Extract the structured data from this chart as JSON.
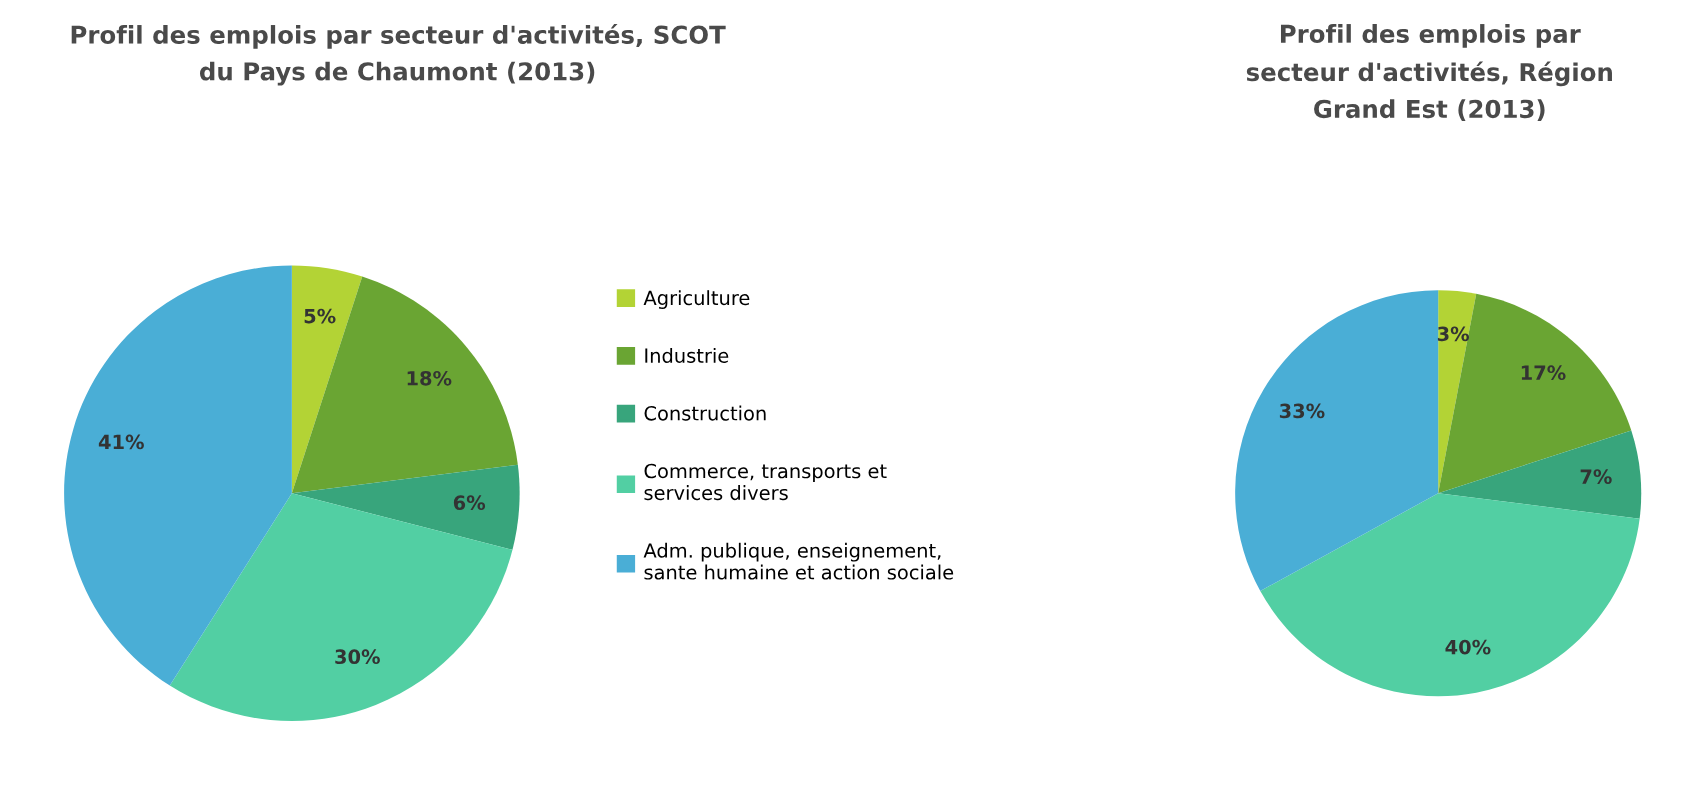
{
  "chart_data": [
    {
      "type": "pie",
      "title": "Profil des emplois par secteur d'activités, SCOT\ndu Pays de Chaumont (2013)",
      "categories": [
        "Agriculture",
        "Industrie",
        "Construction",
        "Commerce, transports et\nservices divers",
        "Adm. publique, enseignement,\nsante humaine et action sociale"
      ],
      "values": [
        5,
        18,
        6,
        30,
        41
      ],
      "value_labels": [
        "5%",
        "18%",
        "6%",
        "30%",
        "41%"
      ],
      "colors": [
        "#b3d335",
        "#6aa533",
        "#38a57c",
        "#52cfa3",
        "#4aaed6"
      ],
      "legend": "right"
    },
    {
      "type": "pie",
      "title": "Profil des emplois par\nsecteur d'activités, Région\nGrand Est (2013)",
      "categories": [
        null,
        null,
        null,
        null,
        null
      ],
      "values": [
        3,
        17,
        7,
        40,
        33
      ],
      "value_labels": [
        "3%",
        "17%",
        "7%",
        "40%",
        "33%"
      ],
      "colors": [
        "#b3d335",
        "#6aa533",
        "#38a57c",
        "#52cfa3",
        "#4aaed6"
      ]
    }
  ]
}
